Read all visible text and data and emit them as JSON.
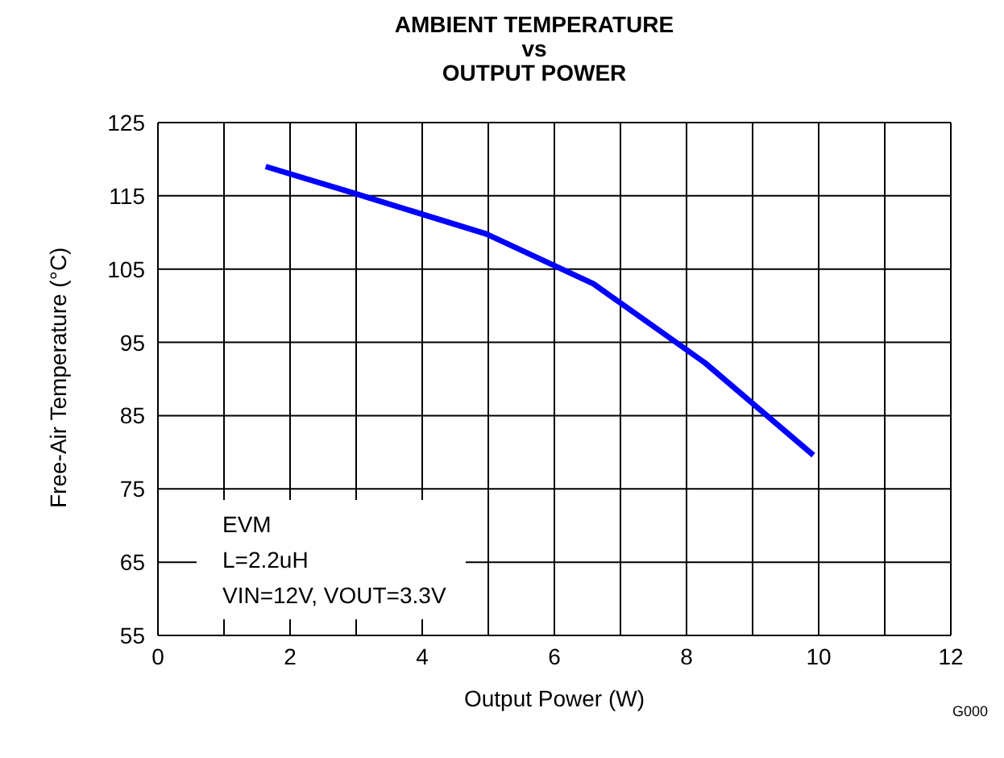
{
  "chart_data": {
    "type": "line",
    "title": "AMBIENT TEMPERATURE\nvs\nOUTPUT POWER",
    "xlabel": "Output Power (W)",
    "ylabel": "Free-Air Temperature (°C)",
    "x": [
      1.63,
      2.95,
      4.97,
      6.59,
      8.28,
      9.92
    ],
    "series": [
      {
        "color": "#0000ff",
        "values": [
          119,
          115.4,
          109.8,
          103,
          92.2,
          79.6
        ]
      }
    ],
    "xlim": [
      0,
      12
    ],
    "xticks": [
      0,
      {
        "value": 1,
        "label": null
      },
      2,
      {
        "value": 3,
        "label": null
      },
      4,
      {
        "value": 5,
        "label": null
      },
      6,
      {
        "value": 7,
        "label": null
      },
      8,
      {
        "value": 9,
        "label": null
      },
      10,
      {
        "value": 11,
        "label": null
      },
      12
    ],
    "ylim": [
      55,
      125
    ],
    "yticks": [
      55,
      65,
      75,
      85,
      95,
      105,
      115,
      125
    ],
    "grid": true,
    "legend": false,
    "marker": "none",
    "line_style": "solid",
    "annotations": [
      "EVM",
      "L=2.2uH",
      "VIN=12V, VOUT=3.3V",
      "G000"
    ]
  }
}
